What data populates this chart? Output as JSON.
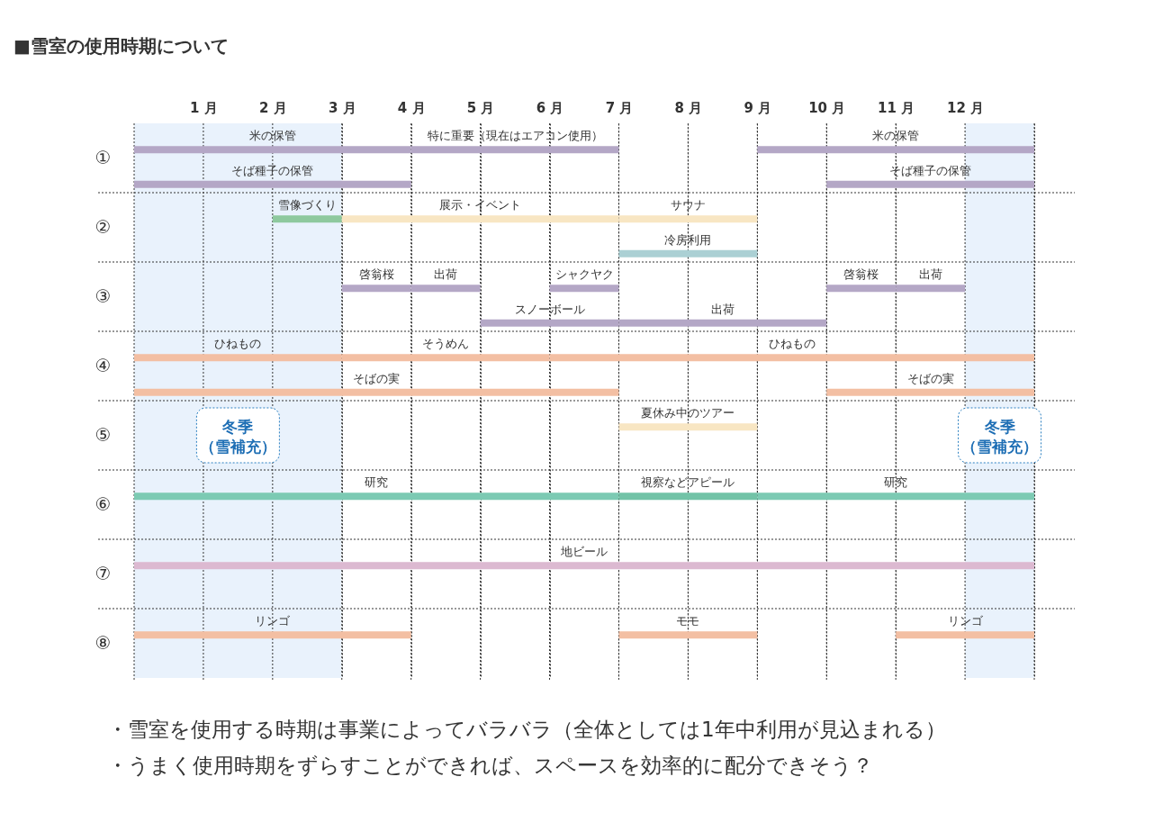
{
  "chart_data": {
    "type": "bar",
    "orientation": "horizontal",
    "title": "■雪室の使用時期について",
    "categories": [
      "①",
      null,
      "②",
      null,
      "③",
      null,
      "④",
      null,
      "⑤",
      null,
      "⑥",
      null,
      "⑦",
      null,
      "⑧",
      null
    ],
    "xlim": [
      0,
      13
    ],
    "xticks": [
      {
        "value": 0,
        "label": null
      },
      {
        "value": 1,
        "label": "1 月"
      },
      {
        "value": 2,
        "label": "2 月"
      },
      {
        "value": 3,
        "label": "3 月"
      },
      {
        "value": 4,
        "label": "4 月"
      },
      {
        "value": 5,
        "label": "5 月"
      },
      {
        "value": 6,
        "label": "6 月"
      },
      {
        "value": 7,
        "label": "7 月"
      },
      {
        "value": 8,
        "label": "8 月"
      },
      {
        "value": 9,
        "label": "9 月"
      },
      {
        "value": 10,
        "label": "10 月"
      },
      {
        "value": 11,
        "label": "11 月"
      },
      {
        "value": 12,
        "label": "12 月"
      },
      {
        "value": 13,
        "label": null
      }
    ],
    "grid": true,
    "series": [
      {
        "color": "#b4a7c6",
        "base": [
          0,
          0,
          null,
          null,
          3,
          5,
          null,
          null,
          null,
          null,
          null,
          null,
          null,
          null,
          null,
          null
        ],
        "values": [
          4,
          4,
          null,
          null,
          1,
          2,
          null,
          null,
          null,
          null,
          null,
          null,
          null,
          null,
          null,
          null
        ],
        "value_labels": [
          "米の保管",
          "そば種子の保管",
          null,
          null,
          "啓翁桜",
          "スノーボール",
          null,
          null,
          null,
          null,
          null,
          null,
          null,
          null,
          null,
          null
        ]
      },
      {
        "color": "#b4a7c6",
        "base": [
          4,
          10,
          null,
          null,
          4,
          7,
          null,
          null,
          null,
          null,
          null,
          null,
          null,
          null,
          null,
          null
        ],
        "values": [
          3,
          3,
          null,
          null,
          1,
          3,
          null,
          null,
          null,
          null,
          null,
          null,
          null,
          null,
          null,
          null
        ],
        "value_labels": [
          "特に重要（現在はエアコン使用）",
          "そば種子の保管",
          null,
          null,
          "出荷",
          "出荷",
          null,
          null,
          null,
          null,
          null,
          null,
          null,
          null,
          null,
          null
        ]
      },
      {
        "color": "#b4a7c6",
        "base": [
          9,
          null,
          null,
          null,
          6,
          null,
          null,
          null,
          null,
          null,
          null,
          null,
          null,
          null,
          null,
          null
        ],
        "values": [
          4,
          null,
          null,
          null,
          1,
          null,
          null,
          null,
          null,
          null,
          null,
          null,
          null,
          null,
          null,
          null
        ],
        "value_labels": [
          "米の保管",
          null,
          null,
          null,
          "シャクヤク",
          null,
          null,
          null,
          null,
          null,
          null,
          null,
          null,
          null,
          null,
          null
        ]
      },
      {
        "color": "#b4a7c6",
        "base": [
          null,
          null,
          null,
          null,
          10,
          null,
          null,
          null,
          null,
          null,
          null,
          null,
          null,
          null,
          null,
          null
        ],
        "values": [
          null,
          null,
          null,
          null,
          1,
          null,
          null,
          null,
          null,
          null,
          null,
          null,
          null,
          null,
          null,
          null
        ],
        "value_labels": [
          null,
          null,
          null,
          null,
          "啓翁桜",
          null,
          null,
          null,
          null,
          null,
          null,
          null,
          null,
          null,
          null,
          null
        ]
      },
      {
        "color": "#b4a7c6",
        "base": [
          null,
          null,
          null,
          null,
          11,
          null,
          null,
          null,
          null,
          null,
          null,
          null,
          null,
          null,
          null,
          null
        ],
        "values": [
          null,
          null,
          null,
          null,
          1,
          null,
          null,
          null,
          null,
          null,
          null,
          null,
          null,
          null,
          null,
          null
        ],
        "value_labels": [
          null,
          null,
          null,
          null,
          "出荷",
          null,
          null,
          null,
          null,
          null,
          null,
          null,
          null,
          null,
          null,
          null
        ]
      },
      {
        "color": "#8ec99e",
        "base": [
          null,
          null,
          2,
          null,
          null,
          null,
          null,
          null,
          null,
          null,
          null,
          null,
          null,
          null,
          null,
          null
        ],
        "values": [
          null,
          null,
          1,
          null,
          null,
          null,
          null,
          null,
          null,
          null,
          null,
          null,
          null,
          null,
          null,
          null
        ],
        "value_labels": [
          null,
          null,
          "雪像づくり",
          null,
          null,
          null,
          null,
          null,
          null,
          null,
          null,
          null,
          null,
          null,
          null,
          null
        ]
      },
      {
        "color": "#f8e6c3",
        "base": [
          null,
          null,
          3,
          null,
          null,
          null,
          null,
          null,
          7,
          null,
          null,
          null,
          null,
          null,
          null,
          null
        ],
        "values": [
          null,
          null,
          4,
          null,
          null,
          null,
          null,
          null,
          2,
          null,
          null,
          null,
          null,
          null,
          null,
          null
        ],
        "value_labels": [
          null,
          null,
          "展示・イベント",
          null,
          null,
          null,
          null,
          null,
          "夏休み中のツアー",
          null,
          null,
          null,
          null,
          null,
          null,
          null
        ]
      },
      {
        "color": "#f8e6c3",
        "base": [
          null,
          null,
          7,
          null,
          null,
          null,
          null,
          null,
          null,
          null,
          null,
          null,
          null,
          null,
          null,
          null
        ],
        "values": [
          null,
          null,
          2,
          null,
          null,
          null,
          null,
          null,
          null,
          null,
          null,
          null,
          null,
          null,
          null,
          null
        ],
        "value_labels": [
          null,
          null,
          "サウナ",
          null,
          null,
          null,
          null,
          null,
          null,
          null,
          null,
          null,
          null,
          null,
          null,
          null
        ]
      },
      {
        "color": "#abd0d4",
        "base": [
          null,
          null,
          null,
          7,
          null,
          null,
          null,
          null,
          null,
          null,
          null,
          null,
          null,
          null,
          null,
          null
        ],
        "values": [
          null,
          null,
          null,
          2,
          null,
          null,
          null,
          null,
          null,
          null,
          null,
          null,
          null,
          null,
          null,
          null
        ],
        "value_labels": [
          null,
          null,
          null,
          "冷房利用",
          null,
          null,
          null,
          null,
          null,
          null,
          null,
          null,
          null,
          null,
          null,
          null
        ]
      },
      {
        "color": "#f3bfa3",
        "base": [
          null,
          null,
          null,
          null,
          null,
          null,
          0,
          0,
          null,
          null,
          null,
          null,
          null,
          null,
          0,
          null
        ],
        "values": [
          null,
          null,
          null,
          null,
          null,
          null,
          3,
          7,
          null,
          null,
          null,
          null,
          null,
          null,
          4,
          null
        ],
        "value_labels": [
          null,
          null,
          null,
          null,
          null,
          null,
          "ひねもの",
          "そばの実",
          null,
          null,
          null,
          null,
          null,
          null,
          "リンゴ",
          null
        ]
      },
      {
        "color": "#f3bfa3",
        "base": [
          null,
          null,
          null,
          null,
          null,
          null,
          3,
          10,
          null,
          null,
          null,
          null,
          null,
          null,
          7,
          null
        ],
        "values": [
          null,
          null,
          null,
          null,
          null,
          null,
          3,
          3,
          null,
          null,
          null,
          null,
          null,
          null,
          2,
          null
        ],
        "value_labels": [
          null,
          null,
          null,
          null,
          null,
          null,
          "そうめん",
          "そばの実",
          null,
          null,
          null,
          null,
          null,
          null,
          "モモ",
          null
        ]
      },
      {
        "color": "#f3bfa3",
        "base": [
          null,
          null,
          null,
          null,
          null,
          null,
          6,
          null,
          null,
          null,
          null,
          null,
          null,
          null,
          11,
          null
        ],
        "values": [
          null,
          null,
          null,
          null,
          null,
          null,
          7,
          null,
          null,
          null,
          null,
          null,
          null,
          null,
          2,
          null
        ],
        "value_labels": [
          null,
          null,
          null,
          null,
          null,
          null,
          "ひねもの",
          null,
          null,
          null,
          null,
          null,
          null,
          null,
          "リンゴ",
          null
        ]
      },
      {
        "color": "#7ccab3",
        "base": [
          null,
          null,
          null,
          null,
          null,
          null,
          null,
          null,
          null,
          null,
          0,
          null,
          null,
          null,
          null,
          null
        ],
        "values": [
          null,
          null,
          null,
          null,
          null,
          null,
          null,
          null,
          null,
          null,
          7,
          null,
          null,
          null,
          null,
          null
        ],
        "value_labels": [
          null,
          null,
          null,
          null,
          null,
          null,
          null,
          null,
          null,
          null,
          "研究",
          null,
          null,
          null,
          null,
          null
        ]
      },
      {
        "color": "#72c3a7",
        "base": [
          null,
          null,
          null,
          null,
          null,
          null,
          null,
          null,
          null,
          null,
          7,
          null,
          null,
          null,
          null,
          null
        ],
        "values": [
          null,
          null,
          null,
          null,
          null,
          null,
          null,
          null,
          null,
          null,
          2,
          null,
          null,
          null,
          null,
          null
        ],
        "value_labels": [
          null,
          null,
          null,
          null,
          null,
          null,
          null,
          null,
          null,
          null,
          "視察などアピール",
          null,
          null,
          null,
          null,
          null
        ]
      },
      {
        "color": "#7ccab3",
        "base": [
          null,
          null,
          null,
          null,
          null,
          null,
          null,
          null,
          null,
          null,
          9,
          null,
          null,
          null,
          null,
          null
        ],
        "values": [
          null,
          null,
          null,
          null,
          null,
          null,
          null,
          null,
          null,
          null,
          4,
          null,
          null,
          null,
          null,
          null
        ],
        "value_labels": [
          null,
          null,
          null,
          null,
          null,
          null,
          null,
          null,
          null,
          null,
          "研究",
          null,
          null,
          null,
          null,
          null
        ]
      },
      {
        "color": "#dcb9d1",
        "base": [
          null,
          null,
          null,
          null,
          null,
          null,
          null,
          null,
          null,
          null,
          null,
          null,
          0,
          null,
          null,
          null
        ],
        "values": [
          null,
          null,
          null,
          null,
          null,
          null,
          null,
          null,
          null,
          null,
          null,
          null,
          13,
          null,
          null,
          null
        ],
        "value_labels": [
          null,
          null,
          null,
          null,
          null,
          null,
          null,
          null,
          null,
          null,
          null,
          null,
          "地ビール",
          null,
          null,
          null
        ]
      }
    ],
    "bands": [
      {
        "axis": "x",
        "from": 0,
        "to": 3,
        "label": "冬季（雪補充）",
        "color": "#e9f2fc"
      },
      {
        "axis": "x",
        "from": 12,
        "to": 13,
        "label": "冬季（雪補充）",
        "color": "#e9f2fc"
      }
    ],
    "annotations": [
      "・雪室を使用する時期は事業によってバラバラ（全体としては1年中利用が見込まれる）",
      "・うまく使用時期をずらすことができれば、スペースを効率的に配分できそう？"
    ]
  }
}
